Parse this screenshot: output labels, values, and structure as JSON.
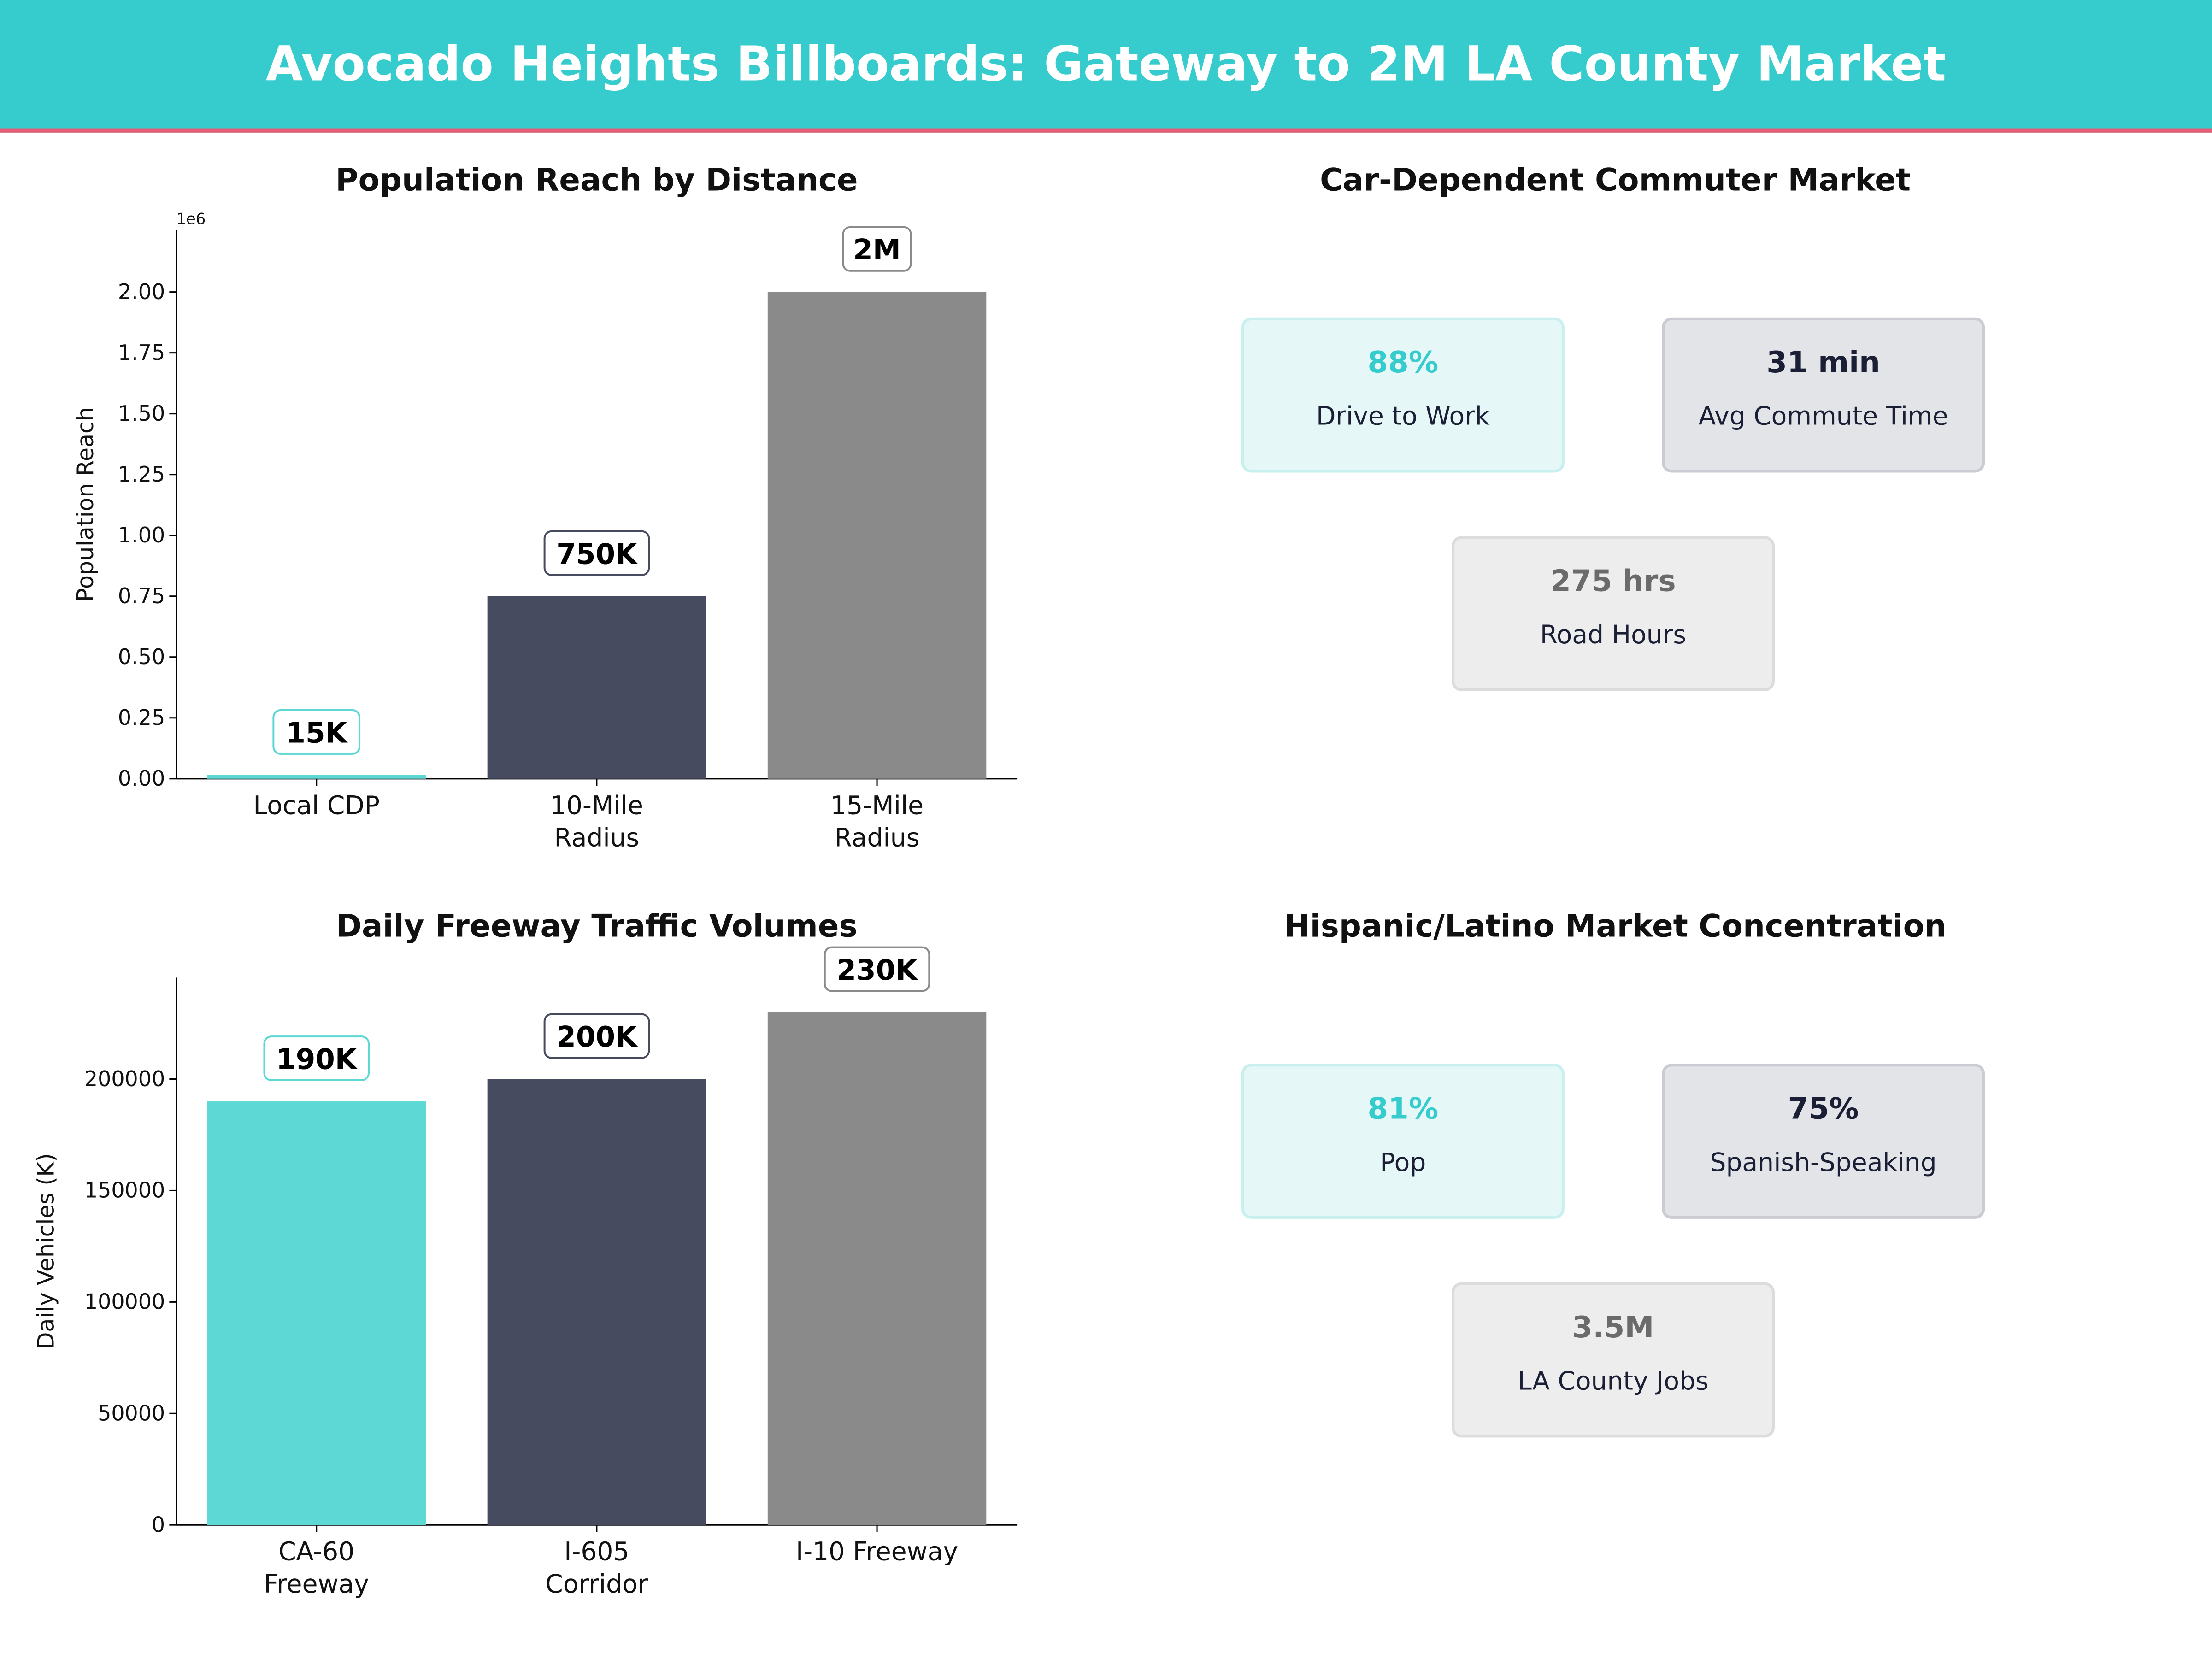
{
  "header": {
    "title": "Avocado Heights Billboards: Gateway to 2M LA County Market"
  },
  "colors": {
    "teal": "#36CBCC",
    "bar_teal": "#5ED8D5",
    "navy": "#464B60",
    "gray": "#8A8A8A",
    "accent_line": "#E85D75"
  },
  "chart_data": [
    {
      "type": "bar",
      "title": "Population Reach by Distance",
      "xlabel": "",
      "ylabel": "Population Reach",
      "offset_label": "1e6",
      "categories": [
        "Local CDP",
        "10-Mile\nRadius",
        "15-Mile\nRadius"
      ],
      "values": [
        15000,
        750000,
        2000000
      ],
      "data_labels": [
        "15K",
        "750K",
        "2M"
      ],
      "ylim": [
        0,
        2255000
      ],
      "yticks": [
        0,
        250000,
        500000,
        750000,
        1000000,
        1250000,
        1500000,
        1750000,
        2000000
      ],
      "ytick_labels": [
        "0.00",
        "0.25",
        "0.50",
        "0.75",
        "1.00",
        "1.25",
        "1.50",
        "1.75",
        "2.00"
      ],
      "grid": false
    },
    {
      "type": "bar",
      "title": "Daily Freeway Traffic Volumes",
      "xlabel": "",
      "ylabel": "Daily Vehicles (K)",
      "categories": [
        "CA-60\nFreeway",
        "I-605\nCorridor",
        "I-10 Freeway"
      ],
      "values": [
        190000,
        200000,
        230000
      ],
      "data_labels": [
        "190K",
        "200K",
        "230K"
      ],
      "ylim": [
        0,
        245500
      ],
      "yticks": [
        0,
        50000,
        100000,
        150000,
        200000
      ],
      "ytick_labels": [
        "0",
        "50000",
        "100000",
        "150000",
        "200000"
      ],
      "grid": false
    }
  ],
  "panels": [
    {
      "title": "Car-Dependent Commuter Market",
      "cards": [
        {
          "value": "88%",
          "label": "Drive to Work"
        },
        {
          "value": "31 min",
          "label": "Avg Commute Time"
        },
        {
          "value": "275 hrs",
          "label": "Road Hours"
        }
      ]
    },
    {
      "title": "Hispanic/Latino Market Concentration",
      "cards": [
        {
          "value": "81%",
          "label": "Pop"
        },
        {
          "value": "75%",
          "label": "Spanish-Speaking"
        },
        {
          "value": "3.5M",
          "label": "LA County Jobs"
        }
      ]
    }
  ]
}
